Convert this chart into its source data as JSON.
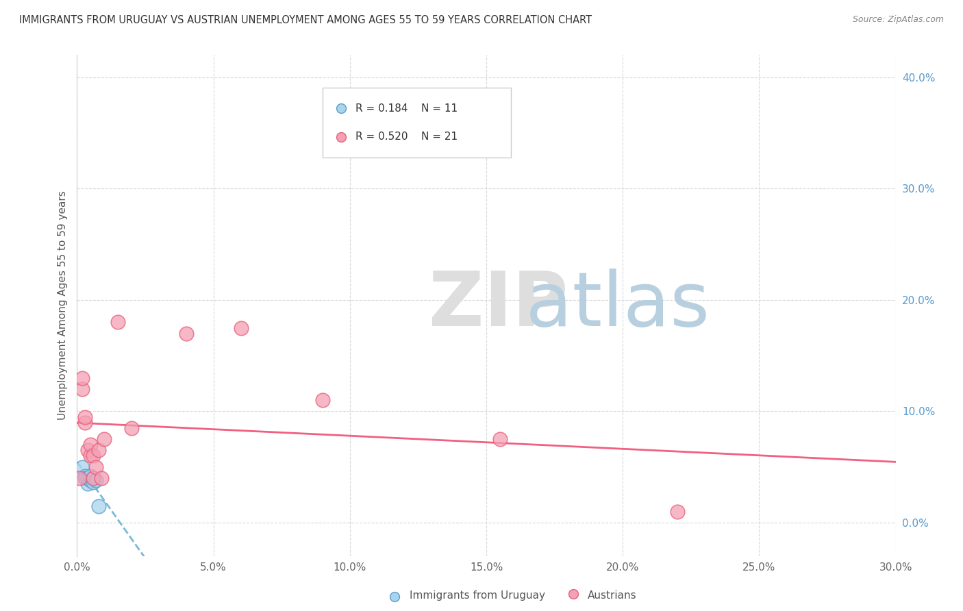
{
  "title": "IMMIGRANTS FROM URUGUAY VS AUSTRIAN UNEMPLOYMENT AMONG AGES 55 TO 59 YEARS CORRELATION CHART",
  "source": "Source: ZipAtlas.com",
  "ylabel": "Unemployment Among Ages 55 to 59 years",
  "xlim": [
    0.0,
    0.3
  ],
  "ylim": [
    -0.03,
    0.42
  ],
  "xticks": [
    0.0,
    0.05,
    0.1,
    0.15,
    0.2,
    0.25,
    0.3
  ],
  "yticks_right": [
    0.0,
    0.1,
    0.2,
    0.3,
    0.4
  ],
  "ytick_right_labels": [
    "0.0%",
    "10.0%",
    "20.0%",
    "30.0%",
    "40.0%"
  ],
  "xtick_labels": [
    "0.0%",
    "5.0%",
    "10.0%",
    "15.0%",
    "20.0%",
    "25.0%",
    "30.0%"
  ],
  "legend_r1": "R = 0.184",
  "legend_n1": "N = 11",
  "legend_r2": "R = 0.520",
  "legend_n2": "N = 21",
  "uruguay_color": "#A8D4EE",
  "austrian_color": "#F4A0B5",
  "uruguay_edge_color": "#5B9EC9",
  "austrian_edge_color": "#E8607A",
  "uruguay_line_color": "#7AB8D8",
  "austrian_line_color": "#F06080",
  "uruguay_x": [
    0.002,
    0.003,
    0.003,
    0.004,
    0.004,
    0.005,
    0.005,
    0.006,
    0.006,
    0.007,
    0.008
  ],
  "uruguay_y": [
    0.05,
    0.042,
    0.04,
    0.035,
    0.04,
    0.038,
    0.042,
    0.036,
    0.04,
    0.038,
    0.015
  ],
  "austrian_x": [
    0.001,
    0.002,
    0.002,
    0.003,
    0.003,
    0.004,
    0.005,
    0.005,
    0.006,
    0.006,
    0.007,
    0.008,
    0.009,
    0.01,
    0.015,
    0.02,
    0.04,
    0.06,
    0.09,
    0.155,
    0.22
  ],
  "austrian_y": [
    0.04,
    0.12,
    0.13,
    0.09,
    0.095,
    0.065,
    0.06,
    0.07,
    0.04,
    0.06,
    0.05,
    0.065,
    0.04,
    0.075,
    0.18,
    0.085,
    0.17,
    0.175,
    0.11,
    0.075,
    0.01
  ],
  "background_color": "#ffffff",
  "grid_color": "#d8d8d8",
  "watermark_zip_color": "#e0e0e0",
  "watermark_atlas_color": "#b8cfe8"
}
